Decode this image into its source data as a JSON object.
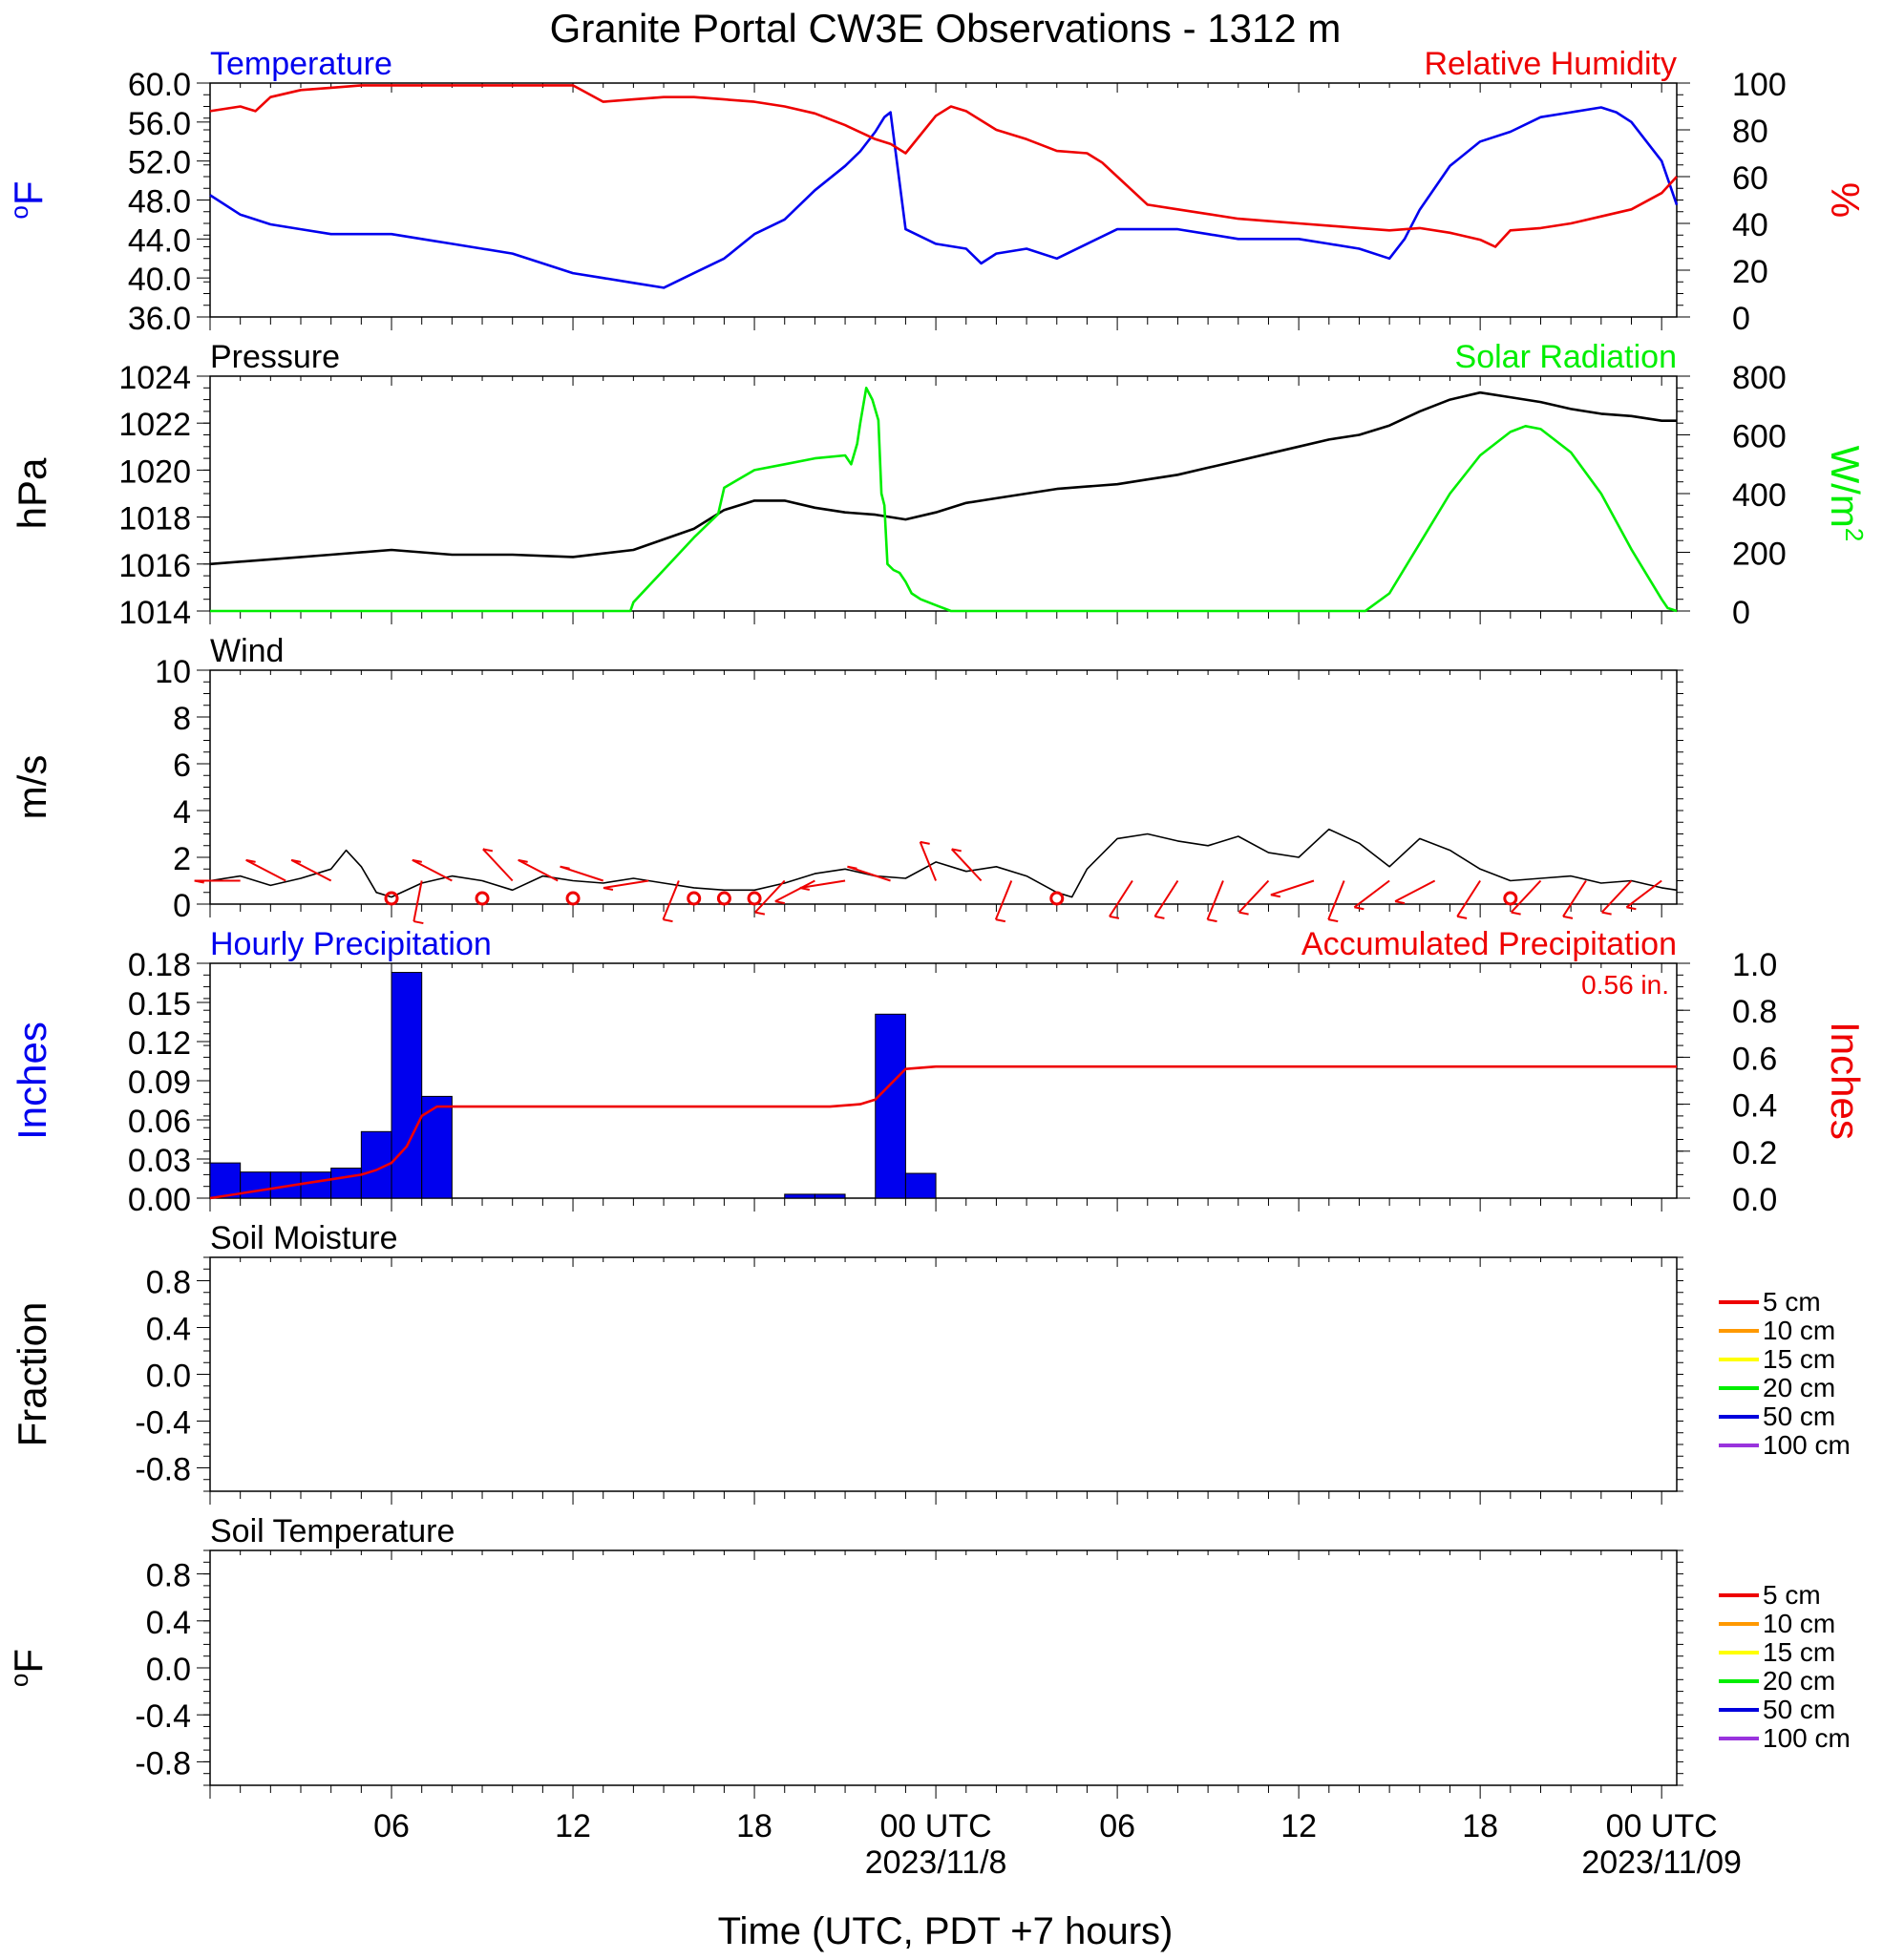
{
  "title": "Granite Portal CW3E Observations - 1312 m",
  "colors": {
    "temperature": "#0000ee",
    "humidity": "#ee0000",
    "pressure": "#000000",
    "solar": "#00ee00",
    "wind": "#000000",
    "barb": "#ee0000",
    "precip_bar": "#0000ee",
    "precip_accum": "#ee0000",
    "soil_5cm": "#ee0000",
    "soil_10cm": "#ff9900",
    "soil_15cm": "#ffff00",
    "soil_20cm": "#00ee00",
    "soil_50cm": "#0000dd",
    "soil_100cm": "#9933dd"
  },
  "x_axis": {
    "label": "Time (UTC, PDT +7 hours)",
    "range_hours": [
      -24,
      24.5
    ],
    "major_ticks": [
      {
        "hour": -18,
        "label": "06"
      },
      {
        "hour": -12,
        "label": "12"
      },
      {
        "hour": -6,
        "label": "18"
      },
      {
        "hour": 0,
        "label": "00 UTC"
      },
      {
        "hour": 6,
        "label": "06"
      },
      {
        "hour": 12,
        "label": "12"
      },
      {
        "hour": 18,
        "label": "18"
      },
      {
        "hour": 24,
        "label": "00 UTC"
      }
    ],
    "date_labels": [
      {
        "hour": 0,
        "label": "2023/11/8"
      },
      {
        "hour": 24,
        "label": "2023/11/09"
      }
    ]
  },
  "chart_data": [
    {
      "type": "line",
      "panel": "temperature-humidity",
      "left_title": "Temperature",
      "right_title": "Relative Humidity",
      "ylabel": "oF",
      "y2label": "%",
      "ylim": [
        36,
        60
      ],
      "y2lim": [
        0,
        100
      ],
      "yticks": [
        "60.0",
        "56.0",
        "52.0",
        "48.0",
        "44.0",
        "40.0",
        "36.0"
      ],
      "y2ticks": [
        "100",
        "80",
        "60",
        "40",
        "20",
        "0"
      ],
      "series": [
        {
          "name": "Temperature",
          "axis": "left",
          "x": [
            -24,
            -23,
            -22,
            -21,
            -20,
            -19,
            -18,
            -17,
            -16,
            -15,
            -14,
            -13,
            -12,
            -11,
            -10,
            -9,
            -8,
            -7,
            -6,
            -5,
            -4,
            -3,
            -2.5,
            -2,
            -1.7,
            -1.5,
            -1,
            0,
            1,
            1.5,
            2,
            3,
            4,
            5,
            6,
            7,
            8,
            9,
            10,
            11,
            12,
            13,
            14,
            15,
            15.5,
            16,
            17,
            18,
            19,
            20,
            21,
            22,
            22.5,
            23,
            24,
            24.5
          ],
          "y": [
            48.5,
            46.5,
            45.5,
            45.0,
            44.5,
            44.5,
            44.5,
            44.0,
            43.5,
            43.0,
            42.5,
            41.5,
            40.5,
            40.0,
            39.5,
            39.0,
            40.5,
            42.0,
            44.5,
            46.0,
            49.0,
            51.5,
            53.0,
            55.0,
            56.5,
            57.0,
            45.0,
            43.5,
            43.0,
            41.5,
            42.5,
            43.0,
            42.0,
            43.5,
            45.0,
            45.0,
            45.0,
            44.5,
            44.0,
            44.0,
            44.0,
            43.5,
            43.0,
            42.0,
            44.0,
            47.0,
            51.5,
            54.0,
            55.0,
            56.5,
            57.0,
            57.5,
            57.0,
            56.0,
            52.0,
            47.5
          ]
        },
        {
          "name": "Relative Humidity",
          "axis": "right",
          "x": [
            -24,
            -23,
            -22.5,
            -22,
            -21,
            -20,
            -19,
            -18,
            -17,
            -16,
            -15,
            -14,
            -13,
            -12.5,
            -12,
            -11,
            -10,
            -9,
            -8,
            -7,
            -6,
            -5,
            -4,
            -3,
            -2,
            -1.5,
            -1,
            0,
            0.5,
            1,
            2,
            3,
            4,
            5,
            5.5,
            6,
            7,
            8,
            9,
            10,
            11,
            12,
            13,
            14,
            15,
            16,
            17,
            18,
            18.5,
            19,
            20,
            21,
            22,
            23,
            24,
            24.5
          ],
          "y": [
            88,
            90,
            88,
            94,
            97,
            98,
            99,
            99,
            99,
            99,
            99,
            99,
            99,
            99,
            99,
            92,
            93,
            94,
            94,
            93,
            92,
            90,
            87,
            82,
            76,
            74,
            70,
            86,
            90,
            88,
            80,
            76,
            71,
            70,
            66,
            60,
            48,
            46,
            44,
            42,
            41,
            40,
            39,
            38,
            37,
            38,
            36,
            33,
            30,
            37,
            38,
            40,
            43,
            46,
            53,
            60
          ]
        }
      ]
    },
    {
      "type": "line",
      "panel": "pressure-solar",
      "left_title": "Pressure",
      "right_title": "Solar Radiation",
      "ylabel": "hPa",
      "y2label": "W/m2",
      "ylim": [
        1014,
        1024
      ],
      "y2lim": [
        0,
        800
      ],
      "yticks": [
        "1024",
        "1022",
        "1020",
        "1018",
        "1016",
        "1014"
      ],
      "y2ticks": [
        "800",
        "600",
        "400",
        "200",
        "0"
      ],
      "series": [
        {
          "name": "Pressure",
          "axis": "left",
          "x": [
            -24,
            -22,
            -20,
            -18,
            -16,
            -14,
            -12,
            -10,
            -8,
            -7,
            -6,
            -5,
            -4,
            -3,
            -2,
            -1,
            0,
            1,
            2,
            3,
            4,
            5,
            6,
            7,
            8,
            9,
            10,
            11,
            12,
            13,
            14,
            15,
            16,
            17,
            18,
            19,
            20,
            21,
            22,
            23,
            24,
            24.5
          ],
          "y": [
            1016.0,
            1016.2,
            1016.4,
            1016.6,
            1016.4,
            1016.4,
            1016.3,
            1016.6,
            1017.5,
            1018.3,
            1018.7,
            1018.7,
            1018.4,
            1018.2,
            1018.1,
            1017.9,
            1018.2,
            1018.6,
            1018.8,
            1019.0,
            1019.2,
            1019.3,
            1019.4,
            1019.6,
            1019.8,
            1020.1,
            1020.4,
            1020.7,
            1021.0,
            1021.3,
            1021.5,
            1021.9,
            1022.5,
            1023.0,
            1023.3,
            1023.1,
            1022.9,
            1022.6,
            1022.4,
            1022.3,
            1022.1,
            1022.1
          ]
        },
        {
          "name": "Solar Radiation",
          "axis": "right",
          "x": [
            -24,
            -10.1,
            -10,
            -9,
            -8,
            -7.2,
            -7,
            -6.5,
            -6,
            -5,
            -4,
            -3,
            -2.8,
            -2.6,
            -2.5,
            -2.3,
            -2.1,
            -1.9,
            -1.8,
            -1.7,
            -1.6,
            -1.4,
            -1.2,
            -1,
            -0.8,
            -0.5,
            0,
            0.5,
            1,
            2,
            4,
            6,
            8,
            10,
            12,
            14,
            14.2,
            15,
            16,
            17,
            18,
            19,
            19.5,
            20,
            21,
            22,
            23,
            24,
            24.2,
            24.5
          ],
          "y": [
            0,
            0,
            30,
            140,
            250,
            330,
            420,
            450,
            480,
            500,
            520,
            530,
            500,
            570,
            640,
            760,
            720,
            650,
            400,
            360,
            160,
            140,
            130,
            100,
            60,
            40,
            20,
            0,
            0,
            0,
            0,
            0,
            0,
            0,
            0,
            0,
            0,
            60,
            230,
            400,
            530,
            610,
            630,
            620,
            540,
            400,
            210,
            40,
            10,
            0
          ]
        }
      ]
    },
    {
      "type": "line",
      "panel": "wind",
      "left_title": "Wind",
      "ylabel": "m/s",
      "ylim": [
        0,
        10
      ],
      "yticks": [
        "10",
        "8",
        "6",
        "4",
        "2",
        "0"
      ],
      "series": [
        {
          "name": "Wind",
          "x": [
            -24,
            -23,
            -22,
            -21,
            -20,
            -19.5,
            -19,
            -18.5,
            -18,
            -17,
            -16,
            -15,
            -14,
            -13,
            -12,
            -11,
            -10,
            -9,
            -8,
            -7,
            -6,
            -5,
            -4,
            -3,
            -2,
            -1,
            0,
            1,
            2,
            3,
            4,
            4.5,
            5,
            6,
            7,
            8,
            9,
            10,
            11,
            12,
            13,
            14,
            15,
            16,
            17,
            18,
            19,
            20,
            21,
            22,
            23,
            24,
            24.5
          ],
          "y": [
            1.0,
            1.2,
            0.8,
            1.1,
            1.5,
            2.3,
            1.6,
            0.5,
            0.3,
            0.9,
            1.2,
            1.0,
            0.6,
            1.2,
            1.0,
            0.9,
            1.1,
            0.9,
            0.7,
            0.6,
            0.6,
            0.9,
            1.3,
            1.5,
            1.2,
            1.1,
            1.8,
            1.4,
            1.6,
            1.2,
            0.5,
            0.3,
            1.5,
            2.8,
            3.0,
            2.7,
            2.5,
            2.9,
            2.2,
            2.0,
            3.2,
            2.6,
            1.6,
            2.8,
            2.3,
            1.5,
            1.0,
            1.1,
            1.2,
            0.9,
            1.0,
            0.7,
            0.6
          ]
        }
      ],
      "barbs": [
        {
          "hour": -23,
          "dir": 270
        },
        {
          "hour": -21.5,
          "dir": 300
        },
        {
          "hour": -20,
          "dir": 300
        },
        {
          "hour": -18,
          "dir": 0,
          "calm": true
        },
        {
          "hour": -17,
          "dir": 190
        },
        {
          "hour": -16,
          "dir": 300
        },
        {
          "hour": -15,
          "dir": 0,
          "calm": true
        },
        {
          "hour": -14,
          "dir": 320
        },
        {
          "hour": -12.5,
          "dir": 300
        },
        {
          "hour": -12,
          "dir": 0,
          "calm": true
        },
        {
          "hour": -11,
          "dir": 290
        },
        {
          "hour": -9.5,
          "dir": 260
        },
        {
          "hour": -8.5,
          "dir": 200
        },
        {
          "hour": -8,
          "dir": 0,
          "calm": true
        },
        {
          "hour": -7,
          "dir": 0,
          "calm": true
        },
        {
          "hour": -6,
          "dir": 0,
          "calm": true
        },
        {
          "hour": -5,
          "dir": 220
        },
        {
          "hour": -4,
          "dir": 240
        },
        {
          "hour": -3,
          "dir": 260
        },
        {
          "hour": -1.5,
          "dir": 290
        },
        {
          "hour": 0,
          "dir": 340
        },
        {
          "hour": 1.5,
          "dir": 320
        },
        {
          "hour": 2.5,
          "dir": 200
        },
        {
          "hour": 4,
          "dir": 0,
          "calm": true
        },
        {
          "hour": 6.5,
          "dir": 210
        },
        {
          "hour": 8,
          "dir": 210
        },
        {
          "hour": 9.5,
          "dir": 200
        },
        {
          "hour": 11,
          "dir": 220
        },
        {
          "hour": 12.5,
          "dir": 250
        },
        {
          "hour": 13.5,
          "dir": 200
        },
        {
          "hour": 15,
          "dir": 230
        },
        {
          "hour": 16.5,
          "dir": 240
        },
        {
          "hour": 18,
          "dir": 210
        },
        {
          "hour": 19,
          "dir": 0,
          "calm": true
        },
        {
          "hour": 20,
          "dir": 220
        },
        {
          "hour": 21.5,
          "dir": 210
        },
        {
          "hour": 23,
          "dir": 220
        },
        {
          "hour": 24,
          "dir": 230
        }
      ]
    },
    {
      "type": "bar",
      "panel": "precipitation",
      "left_title": "Hourly Precipitation",
      "right_title": "Accumulated Precipitation",
      "total_label": "0.56 in.",
      "ylabel": "Inches",
      "y2label": "Inches",
      "ylim": [
        0,
        0.18
      ],
      "y2lim": [
        0,
        1.0
      ],
      "yticks": [
        "0.18",
        "0.15",
        "0.12",
        "0.09",
        "0.06",
        "0.03",
        "0.00"
      ],
      "y2ticks": [
        "1.0",
        "0.8",
        "0.6",
        "0.4",
        "0.2",
        "0.0"
      ],
      "bars": [
        {
          "start": -24,
          "value": 0.027
        },
        {
          "start": -23,
          "value": 0.02
        },
        {
          "start": -22,
          "value": 0.02
        },
        {
          "start": -21,
          "value": 0.02
        },
        {
          "start": -20,
          "value": 0.023
        },
        {
          "start": -19,
          "value": 0.051
        },
        {
          "start": -18,
          "value": 0.173
        },
        {
          "start": -17,
          "value": 0.078
        },
        {
          "start": -5,
          "value": 0.003
        },
        {
          "start": -4,
          "value": 0.003
        },
        {
          "start": -2,
          "value": 0.141
        },
        {
          "start": -1,
          "value": 0.019
        }
      ],
      "accumulated": {
        "x": [
          -24,
          -23,
          -22,
          -21,
          -20,
          -19,
          -18.5,
          -18,
          -17.5,
          -17,
          -16.5,
          -16,
          -12,
          -6,
          -3.5,
          -2.5,
          -2,
          -1,
          0,
          12,
          24.5
        ],
        "y": [
          0.0,
          0.02,
          0.04,
          0.06,
          0.08,
          0.1,
          0.12,
          0.15,
          0.22,
          0.35,
          0.39,
          0.39,
          0.39,
          0.39,
          0.39,
          0.4,
          0.42,
          0.55,
          0.56,
          0.56,
          0.56
        ]
      }
    },
    {
      "type": "line",
      "panel": "soil-moisture",
      "left_title": "Soil Moisture",
      "ylabel": "Fraction",
      "ylim": [
        -1,
        1
      ],
      "yticks": [
        "0.8",
        "0.4",
        "0.0",
        "-0.4",
        "-0.8"
      ],
      "legend": [
        "5 cm",
        "10 cm",
        "15 cm",
        "20 cm",
        "50 cm",
        "100 cm"
      ],
      "series": []
    },
    {
      "type": "line",
      "panel": "soil-temperature",
      "left_title": "Soil Temperature",
      "ylabel": "oF",
      "ylim": [
        -1,
        1
      ],
      "yticks": [
        "0.8",
        "0.4",
        "0.0",
        "-0.4",
        "-0.8"
      ],
      "legend": [
        "5 cm",
        "10 cm",
        "15 cm",
        "20 cm",
        "50 cm",
        "100 cm"
      ],
      "series": []
    }
  ]
}
